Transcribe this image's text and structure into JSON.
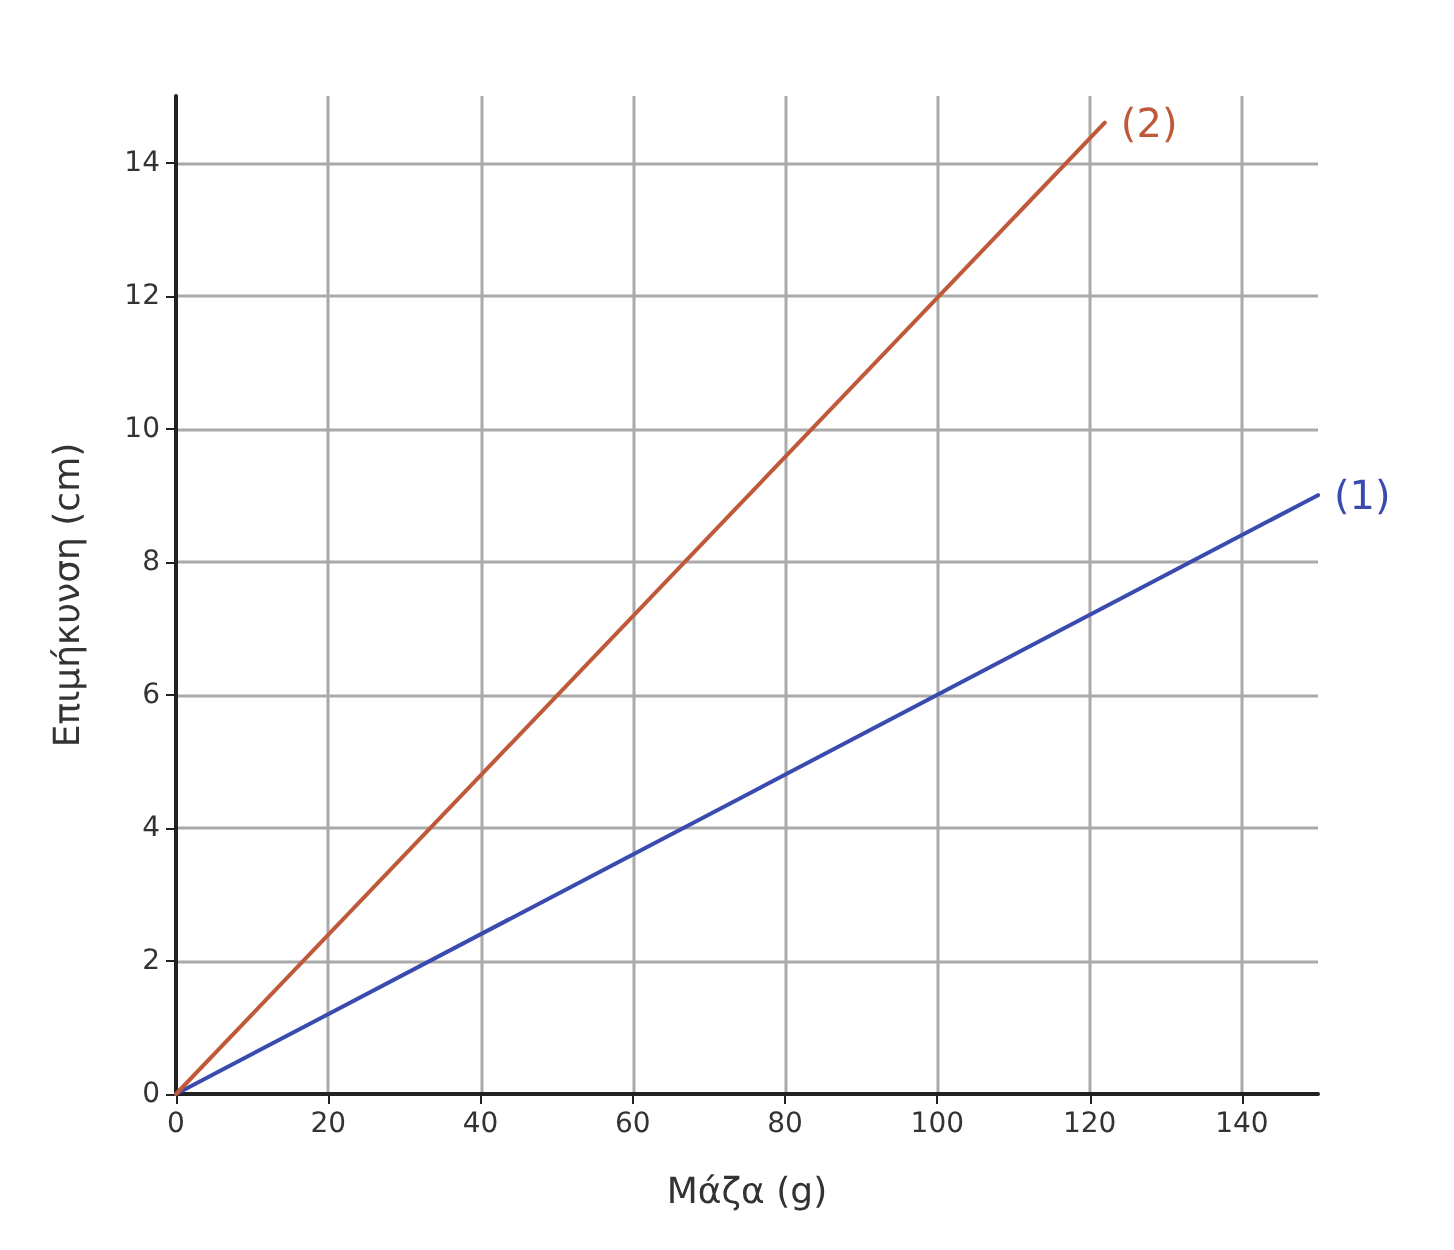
{
  "chart_data": {
    "type": "line",
    "xlabel": "Μάζα (g)",
    "ylabel": "Επιμήκυνση (cm)",
    "series": [
      {
        "name": "(1)",
        "color": "#3a4bb0",
        "x": [
          0,
          150
        ],
        "values": [
          0,
          9
        ]
      },
      {
        "name": "(2)",
        "color": "#c0583a",
        "x": [
          0,
          122
        ],
        "values": [
          0,
          14.6
        ]
      }
    ],
    "xlim": [
      0,
      150
    ],
    "xticks": [
      0,
      20,
      40,
      60,
      80,
      100,
      120,
      140
    ],
    "ylim": [
      0,
      15
    ],
    "yticks": [
      0,
      2,
      4,
      6,
      8,
      10,
      12,
      14
    ],
    "grid": true,
    "marker": "none",
    "line_style": "solid"
  }
}
